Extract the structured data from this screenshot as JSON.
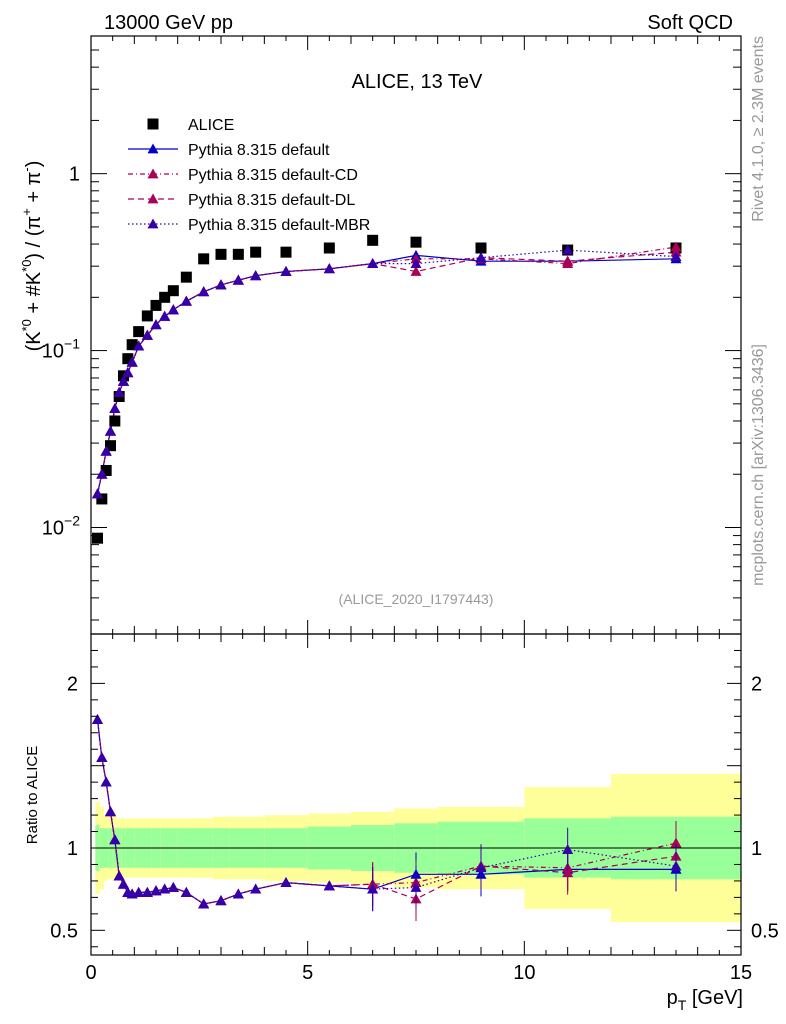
{
  "header": {
    "left": "13000 GeV pp",
    "right": "Soft QCD"
  },
  "side_labels": {
    "rivet": "Rivet 4.1.0, ≥ 2.3M events",
    "mcplots": "mcplots.cern.ch [arXiv:1306.3436]"
  },
  "watermark": "(ALICE_2020_I1797443)",
  "colors": {
    "data": "#000000",
    "default": "#0000cc",
    "default_cd": "#aa0055",
    "default_dl": "#aa0055",
    "default_mbr": "#3300aa",
    "band_inner": "#99ff99",
    "band_outer": "#ffff99"
  },
  "chart_data": [
    {
      "type": "scatter",
      "title": "ALICE, 13 TeV",
      "xlabel": "",
      "ylabel_parts": {
        "main": "(K",
        "sup1": "*0",
        "mid": " + #K",
        "sup2": "*0",
        "close": ") / (π",
        "sup3": "+",
        "plus": " + π",
        "sup4": "-",
        "end": ")"
      },
      "yscale": "log",
      "xlim": [
        0,
        15
      ],
      "ylim": [
        0.0025,
        6
      ],
      "y_tick_labels": [
        {
          "base": "10",
          "exp": "−2",
          "value": 0.01
        },
        {
          "base": "10",
          "exp": "−1",
          "value": 0.1
        },
        {
          "base": "1",
          "exp": "",
          "value": 1
        }
      ],
      "legend_position": "top-left",
      "x": [
        0.15,
        0.25,
        0.35,
        0.45,
        0.55,
        0.65,
        0.75,
        0.85,
        0.95,
        1.1,
        1.3,
        1.5,
        1.7,
        1.9,
        2.2,
        2.6,
        3.0,
        3.4,
        3.8,
        4.5,
        5.5,
        6.5,
        7.5,
        9.0,
        11.0,
        13.5
      ],
      "series": [
        {
          "name": "ALICE",
          "key": "data",
          "marker": "square",
          "line": "none",
          "values": [
            0.0087,
            0.0145,
            0.021,
            0.029,
            0.04,
            0.055,
            0.072,
            0.09,
            0.108,
            0.128,
            0.157,
            0.18,
            0.2,
            0.218,
            0.26,
            0.33,
            0.35,
            0.35,
            0.36,
            0.36,
            0.38,
            0.42,
            0.41,
            0.38,
            0.37,
            0.38
          ]
        },
        {
          "name": "Pythia 8.315 default",
          "key": "default",
          "marker": "triangle",
          "line": "solid",
          "values": [
            0.0155,
            0.02,
            0.027,
            0.035,
            0.047,
            0.058,
            0.067,
            0.075,
            0.086,
            0.106,
            0.122,
            0.14,
            0.156,
            0.17,
            0.19,
            0.215,
            0.235,
            0.25,
            0.265,
            0.28,
            0.29,
            0.31,
            0.345,
            0.32,
            0.32,
            0.33
          ]
        },
        {
          "name": "Pythia 8.315 default-CD",
          "key": "default_cd",
          "marker": "triangle",
          "line": "dashdot",
          "values": [
            0.0155,
            0.02,
            0.027,
            0.035,
            0.047,
            0.058,
            0.067,
            0.075,
            0.086,
            0.106,
            0.122,
            0.14,
            0.156,
            0.17,
            0.19,
            0.215,
            0.235,
            0.25,
            0.265,
            0.28,
            0.29,
            0.31,
            0.33,
            0.33,
            0.31,
            0.385
          ]
        },
        {
          "name": "Pythia 8.315 default-DL",
          "key": "default_dl",
          "marker": "triangle",
          "line": "dashed",
          "values": [
            0.0155,
            0.02,
            0.027,
            0.035,
            0.047,
            0.058,
            0.067,
            0.075,
            0.086,
            0.106,
            0.122,
            0.14,
            0.156,
            0.17,
            0.19,
            0.215,
            0.235,
            0.25,
            0.265,
            0.28,
            0.29,
            0.31,
            0.28,
            0.335,
            0.32,
            0.36
          ]
        },
        {
          "name": "Pythia 8.315 default-MBR",
          "key": "default_mbr",
          "marker": "triangle",
          "line": "dotted",
          "values": [
            0.0155,
            0.02,
            0.027,
            0.035,
            0.047,
            0.058,
            0.067,
            0.075,
            0.086,
            0.106,
            0.122,
            0.14,
            0.156,
            0.17,
            0.19,
            0.215,
            0.235,
            0.25,
            0.265,
            0.28,
            0.29,
            0.31,
            0.31,
            0.335,
            0.37,
            0.34
          ]
        }
      ]
    },
    {
      "type": "line",
      "title": "",
      "xlabel": "p",
      "xlabel_sub": "T",
      "xlabel_unit": " [GeV]",
      "ylabel": "Ratio to ALICE",
      "xlim": [
        0,
        15
      ],
      "ylim": [
        0.35,
        2.3
      ],
      "x_tick_labels": [
        "0",
        "5",
        "10",
        "15"
      ],
      "y_tick_labels": [
        "0.5",
        "1",
        "2"
      ],
      "reference_line": 1,
      "bands": {
        "edges": [
          0.1,
          0.2,
          0.3,
          0.4,
          0.5,
          0.6,
          0.7,
          0.8,
          0.9,
          1.0,
          1.2,
          1.4,
          1.6,
          1.8,
          2.0,
          2.4,
          2.8,
          3.2,
          3.6,
          4.0,
          5.0,
          6.0,
          7.0,
          8.0,
          10.0,
          12.0,
          15.0
        ],
        "inner": [
          0.14,
          0.12,
          0.12,
          0.12,
          0.12,
          0.12,
          0.12,
          0.12,
          0.12,
          0.12,
          0.12,
          0.12,
          0.12,
          0.12,
          0.12,
          0.12,
          0.12,
          0.12,
          0.12,
          0.12,
          0.13,
          0.14,
          0.15,
          0.16,
          0.18,
          0.19
        ],
        "outer": [
          0.28,
          0.25,
          0.2,
          0.19,
          0.19,
          0.18,
          0.18,
          0.18,
          0.18,
          0.18,
          0.18,
          0.18,
          0.18,
          0.18,
          0.18,
          0.18,
          0.19,
          0.19,
          0.19,
          0.2,
          0.21,
          0.22,
          0.24,
          0.25,
          0.37,
          0.45
        ]
      },
      "x": [
        0.15,
        0.25,
        0.35,
        0.45,
        0.55,
        0.65,
        0.75,
        0.85,
        0.95,
        1.1,
        1.3,
        1.5,
        1.7,
        1.9,
        2.2,
        2.6,
        3.0,
        3.4,
        3.8,
        4.5,
        5.5,
        6.5,
        7.5,
        9.0,
        11.0,
        13.5
      ],
      "series": [
        {
          "name": "Pythia 8.315 default",
          "key": "default",
          "values": [
            1.78,
            1.55,
            1.4,
            1.22,
            1.05,
            0.83,
            0.78,
            0.73,
            0.72,
            0.73,
            0.73,
            0.74,
            0.75,
            0.76,
            0.73,
            0.66,
            0.68,
            0.72,
            0.75,
            0.79,
            0.77,
            0.75,
            0.84,
            0.84,
            0.87,
            0.87
          ]
        },
        {
          "name": "Pythia 8.315 default-CD",
          "key": "default_cd",
          "values": [
            1.78,
            1.55,
            1.4,
            1.22,
            1.05,
            0.83,
            0.78,
            0.73,
            0.72,
            0.73,
            0.73,
            0.74,
            0.75,
            0.76,
            0.73,
            0.66,
            0.68,
            0.72,
            0.75,
            0.79,
            0.77,
            0.78,
            0.79,
            0.89,
            0.88,
            1.03
          ]
        },
        {
          "name": "Pythia 8.315 default-DL",
          "key": "default_dl",
          "values": [
            1.78,
            1.55,
            1.4,
            1.22,
            1.05,
            0.83,
            0.78,
            0.73,
            0.72,
            0.73,
            0.73,
            0.74,
            0.75,
            0.76,
            0.73,
            0.66,
            0.68,
            0.72,
            0.75,
            0.79,
            0.77,
            0.78,
            0.69,
            0.89,
            0.85,
            0.95
          ]
        },
        {
          "name": "Pythia 8.315 default-MBR",
          "key": "default_mbr",
          "values": [
            1.78,
            1.55,
            1.4,
            1.22,
            1.05,
            0.83,
            0.78,
            0.73,
            0.72,
            0.73,
            0.73,
            0.74,
            0.75,
            0.76,
            0.73,
            0.66,
            0.68,
            0.72,
            0.75,
            0.79,
            0.77,
            0.75,
            0.76,
            0.88,
            0.99,
            0.89
          ]
        }
      ]
    }
  ]
}
